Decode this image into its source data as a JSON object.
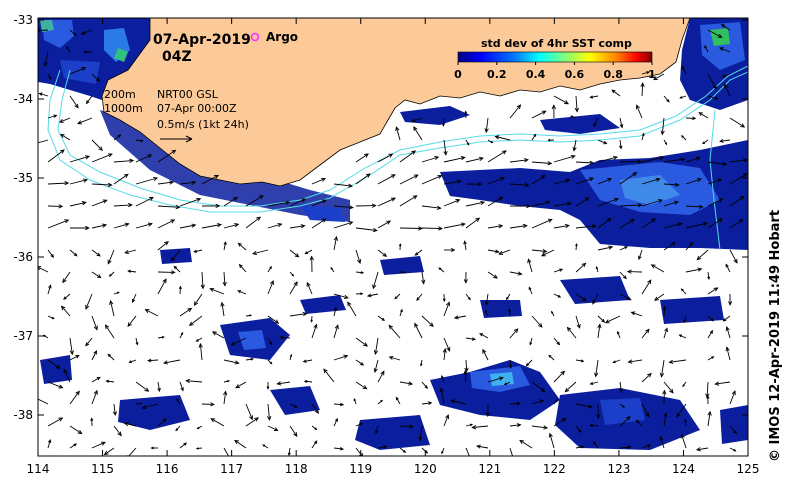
{
  "header": {
    "date": "07-Apr-2019",
    "time": "04Z",
    "argo_label": "Argo"
  },
  "legend": {
    "title": "std dev of 4hr SST comp",
    "ticks": [
      "0",
      "0.2",
      "0.4",
      "0.6",
      "0.8",
      "1"
    ],
    "colors": [
      "#00007f",
      "#0000ff",
      "#0080ff",
      "#00ffff",
      "#80ff80",
      "#ffff00",
      "#ff8000",
      "#ff0000",
      "#7f0000"
    ]
  },
  "notes": {
    "contour_200": "200m",
    "contour_1000": "1000m",
    "product": "NRT00 GSL",
    "analysis_time": "07-Apr 00:00Z",
    "arrow_scale": "0.5m/s (1kt 24h)"
  },
  "axes": {
    "x_ticks": [
      "114",
      "115",
      "116",
      "117",
      "118",
      "119",
      "120",
      "121",
      "122",
      "123",
      "124",
      "125"
    ],
    "y_ticks": [
      "-33",
      "-34",
      "-35",
      "-36",
      "-37",
      "-38"
    ]
  },
  "credit": "© IMOS 12-Apr-2019 11:49 Hobart",
  "colors": {
    "land": "#fcc998",
    "contour": "#55dbe6",
    "sst_dark": "#0b1f9e",
    "sst_mid": "#2a5ae0",
    "sst_light": "#3fb0f0",
    "argo": "#ff30ff"
  }
}
